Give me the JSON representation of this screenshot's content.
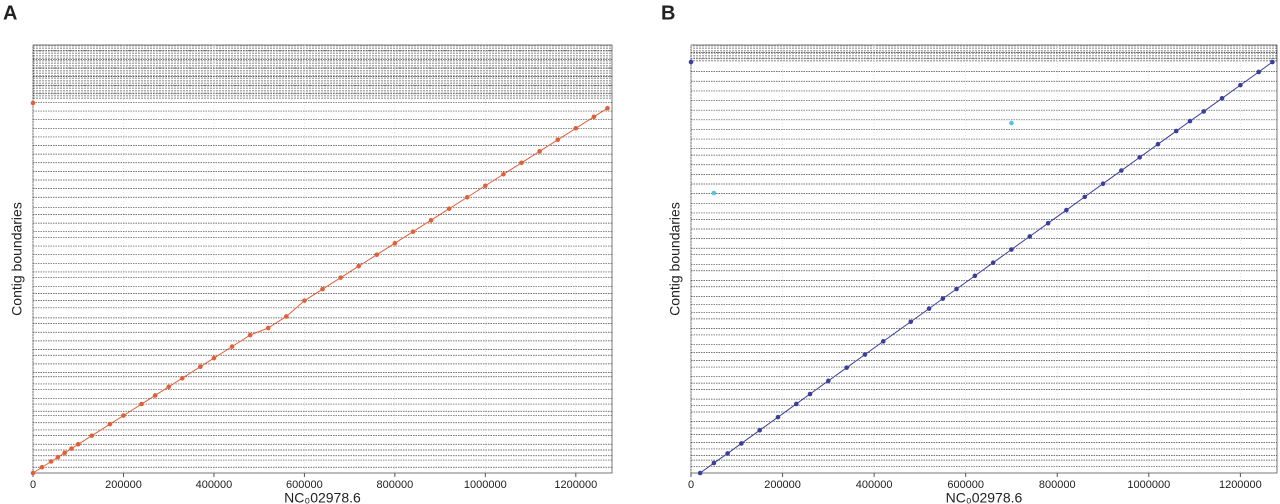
{
  "chart_data": [
    {
      "type": "line",
      "panel_label": "A",
      "ylabel": "Contig boundaries",
      "xlabel": "NC₀02978.6",
      "xlim": [
        0,
        1280000
      ],
      "xticks": [
        0,
        200000,
        400000,
        600000,
        800000,
        1000000,
        1200000
      ],
      "ylim": [
        0,
        1490000
      ],
      "grid": true,
      "hlines": [
        20000,
        45000,
        60000,
        80000,
        100000,
        130000,
        150000,
        175000,
        200000,
        215000,
        240000,
        260000,
        290000,
        310000,
        335000,
        350000,
        380000,
        410000,
        430000,
        460000,
        490000,
        520000,
        540000,
        575000,
        600000,
        625000,
        650000,
        680000,
        700000,
        730000,
        760000,
        790000,
        820000,
        840000,
        870000,
        900000,
        925000,
        960000,
        990000,
        1020000,
        1050000,
        1080000,
        1110000,
        1140000,
        1170000,
        1200000,
        1230000,
        1260000,
        1290000,
        1320000,
        1350000,
        1380000,
        1410000,
        1440000,
        1470000
      ],
      "series": [
        {
          "color": "#e0603a",
          "line": true,
          "x": [
            0,
            20000,
            40000,
            55000,
            70000,
            85000,
            100000,
            130000,
            170000,
            200000,
            240000,
            270000,
            300000,
            330000,
            370000,
            400000,
            440000,
            480000,
            520000,
            560000,
            600000,
            640000,
            680000,
            720000,
            760000,
            800000,
            840000,
            880000,
            920000,
            960000,
            1000000,
            1040000,
            1080000,
            1120000,
            1160000,
            1200000,
            1240000,
            1270000
          ],
          "y": [
            0,
            20000,
            40000,
            55000,
            70000,
            85000,
            100000,
            130000,
            170000,
            200000,
            240000,
            270000,
            300000,
            330000,
            370000,
            400000,
            440000,
            480000,
            505000,
            545000,
            600000,
            640000,
            680000,
            720000,
            760000,
            800000,
            840000,
            880000,
            920000,
            960000,
            1000000,
            1040000,
            1080000,
            1120000,
            1160000,
            1200000,
            1240000,
            1270000
          ]
        },
        {
          "color": "#e0603a",
          "line": false,
          "x": [
            0
          ],
          "y": [
            1288000
          ]
        }
      ]
    },
    {
      "type": "line",
      "panel_label": "B",
      "ylabel": "Contig boundaries",
      "xlabel": "NC₀02978.6",
      "xlim": [
        0,
        1280000
      ],
      "xticks": [
        0,
        200000,
        400000,
        600000,
        800000,
        1000000,
        1200000
      ],
      "ylim": [
        0,
        1333000
      ],
      "grid": true,
      "hlines": [
        20000,
        40000,
        55000,
        75000,
        95000,
        120000,
        140000,
        160000,
        190000,
        210000,
        230000,
        260000,
        280000,
        300000,
        330000,
        350000,
        375000,
        400000,
        430000,
        450000,
        480000,
        500000,
        525000,
        550000,
        580000,
        600000,
        630000,
        650000,
        680000,
        700000,
        730000,
        760000,
        790000,
        810000,
        840000,
        870000,
        900000,
        930000,
        960000,
        990000,
        1010000,
        1040000,
        1070000,
        1100000,
        1130000,
        1160000,
        1190000,
        1220000,
        1250000,
        1290000,
        1310000
      ],
      "series": [
        {
          "color": "#3a3f9a",
          "line": true,
          "x": [
            20000,
            50000,
            80000,
            110000,
            150000,
            190000,
            230000,
            260000,
            300000,
            340000,
            380000,
            420000,
            480000,
            520000,
            550000,
            580000,
            620000,
            660000,
            700000,
            740000,
            780000,
            820000,
            860000,
            900000,
            940000,
            980000,
            1020000,
            1060000,
            1090000,
            1120000,
            1160000,
            1200000,
            1240000,
            1270000
          ],
          "y": [
            0,
            31000,
            61000,
            92000,
            133000,
            174000,
            215000,
            246000,
            287000,
            328000,
            369000,
            410000,
            471000,
            512000,
            543000,
            573000,
            614000,
            655000,
            696000,
            737000,
            778000,
            819000,
            860000,
            901000,
            942000,
            983000,
            1024000,
            1065000,
            1096000,
            1126000,
            1167000,
            1208000,
            1249000,
            1280000
          ]
        },
        {
          "color": "#3a3f9a",
          "line": false,
          "x": [
            0
          ],
          "y": [
            1280000
          ]
        },
        {
          "color": "#5bc0de",
          "line": false,
          "x": [
            50000,
            700000
          ],
          "y": [
            872000,
            1090000
          ]
        }
      ]
    }
  ]
}
